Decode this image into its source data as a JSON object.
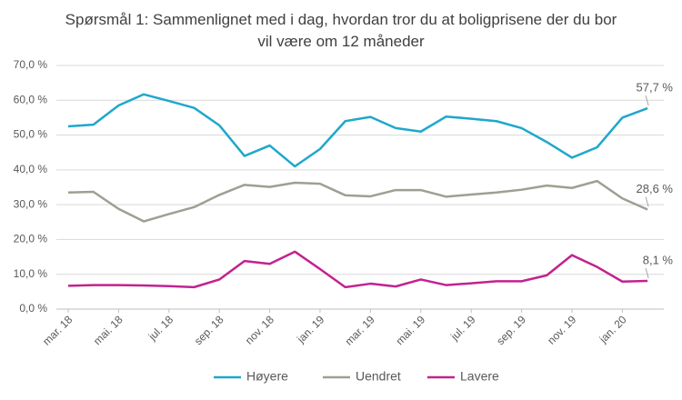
{
  "chart_data": {
    "type": "line",
    "title": "Spørsmål 1: Sammenlignet  med i dag, hvordan tror du at boligprisene der du bor vil være om 12 måneder",
    "categories": [
      "mar. 18",
      null,
      "mai. 18",
      null,
      "jul. 18",
      null,
      "sep. 18",
      null,
      "nov. 18",
      null,
      "jan. 19",
      null,
      "mar. 19",
      null,
      "mai. 19",
      null,
      "jul. 19",
      null,
      "sep. 19",
      null,
      "nov. 19",
      null,
      "jan. 20",
      null
    ],
    "series": [
      {
        "name": "Høyere",
        "color": "#1fa7cc",
        "values": [
          52.5,
          53,
          58.5,
          61.7,
          59.8,
          57.8,
          52.8,
          44,
          47,
          41,
          46,
          54,
          55.2,
          52,
          51,
          55.3,
          54.7,
          54,
          52,
          48,
          43.5,
          46.5,
          55,
          57.7
        ],
        "value_labels": [
          null,
          null,
          null,
          null,
          null,
          null,
          null,
          null,
          null,
          null,
          null,
          null,
          null,
          null,
          null,
          null,
          null,
          null,
          null,
          null,
          null,
          null,
          null,
          "57,7 %"
        ]
      },
      {
        "name": "Uendret",
        "color": "#a09e92",
        "values": [
          33.5,
          33.7,
          28.8,
          25.2,
          27.3,
          29.3,
          32.8,
          35.7,
          35.1,
          36.3,
          36,
          32.7,
          32.4,
          34.2,
          34.2,
          32.3,
          32.9,
          33.5,
          34.3,
          35.5,
          34.8,
          36.8,
          31.8,
          28.6
        ],
        "value_labels": [
          null,
          null,
          null,
          null,
          null,
          null,
          null,
          null,
          null,
          null,
          null,
          null,
          null,
          null,
          null,
          null,
          null,
          null,
          null,
          null,
          null,
          null,
          null,
          "28,6 %"
        ]
      },
      {
        "name": "Lavere",
        "color": "#c2228f",
        "values": [
          6.7,
          6.9,
          6.9,
          6.8,
          6.6,
          6.3,
          8.5,
          13.8,
          13,
          16.5,
          11.5,
          6.3,
          7.3,
          6.5,
          8.5,
          6.9,
          7.4,
          8,
          8,
          9.7,
          15.5,
          12.1,
          7.9,
          8.1
        ],
        "value_labels": [
          null,
          null,
          null,
          null,
          null,
          null,
          null,
          null,
          null,
          null,
          null,
          null,
          null,
          null,
          null,
          null,
          null,
          null,
          null,
          null,
          null,
          null,
          null,
          "8,1 %"
        ]
      }
    ],
    "ylim": [
      0,
      70
    ],
    "yticks": [
      {
        "value": 0,
        "label": "0,0 %"
      },
      {
        "value": 10,
        "label": "10,0 %"
      },
      {
        "value": 20,
        "label": "20,0 %"
      },
      {
        "value": 30,
        "label": "30,0 %"
      },
      {
        "value": 40,
        "label": "40,0 %"
      },
      {
        "value": 50,
        "label": "50,0 %"
      },
      {
        "value": 60,
        "label": "60,0 %"
      },
      {
        "value": 70,
        "label": "70,0 %"
      }
    ],
    "grid": true,
    "legend": "bottom"
  }
}
